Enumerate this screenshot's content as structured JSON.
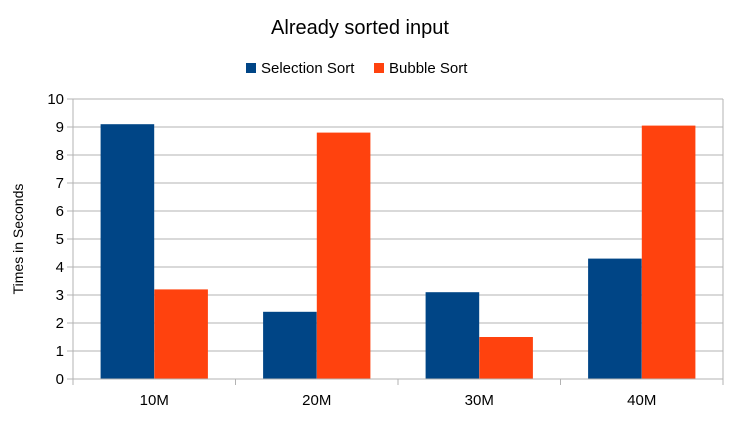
{
  "chart_data": {
    "type": "bar",
    "title": "Already sorted input",
    "xlabel": "",
    "ylabel": "Times in Seconds",
    "categories": [
      "10M",
      "20M",
      "30M",
      "40M"
    ],
    "series": [
      {
        "name": "Selection Sort",
        "color": "#004586",
        "values": [
          9.1,
          2.4,
          3.1,
          4.3
        ]
      },
      {
        "name": "Bubble Sort",
        "color": "#ff420e",
        "values": [
          3.2,
          8.8,
          1.5,
          9.05
        ]
      }
    ],
    "ylim": [
      0,
      10
    ],
    "yticks": [
      0,
      1,
      2,
      3,
      4,
      5,
      6,
      7,
      8,
      9,
      10
    ],
    "grid": true,
    "legend_position": "top-center"
  }
}
